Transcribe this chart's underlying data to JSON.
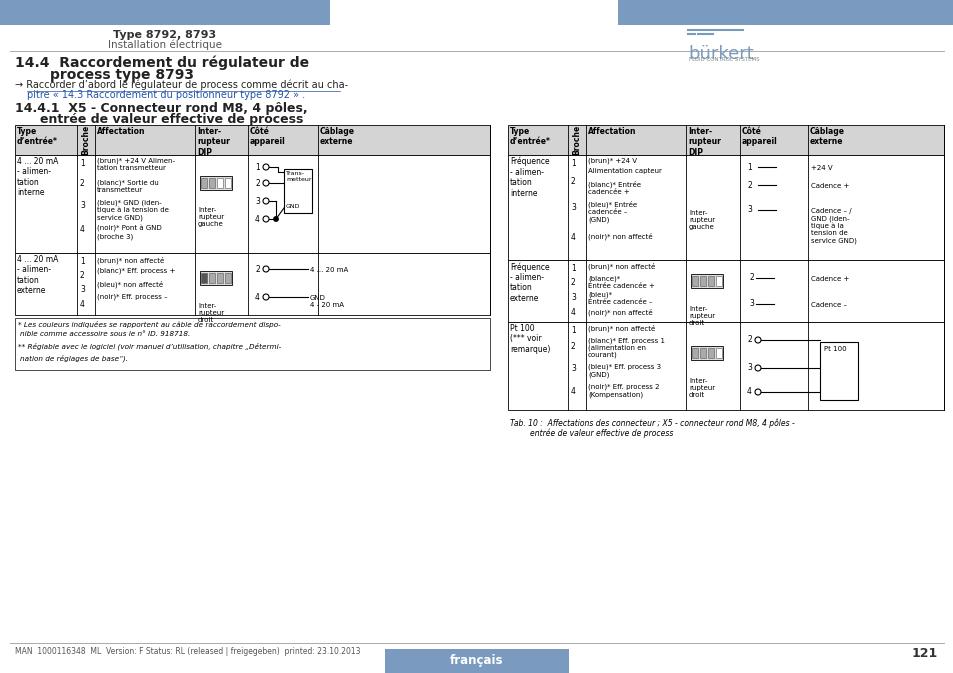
{
  "page_width": 9.54,
  "page_height": 6.73,
  "bg_color": "#ffffff",
  "header_bar_color": "#7a9bbf",
  "header_text1": "Type 8792, 8793",
  "header_text2": "Installation électrique",
  "footer_text": "MAN  1000116348  ML  Version: F Status: RL (released | freigegeben)  printed: 23.10.2013",
  "footer_label": "français",
  "page_number": "121",
  "table_header_color": "#d4d4d4",
  "burkert_blue": "#7a9bbf"
}
